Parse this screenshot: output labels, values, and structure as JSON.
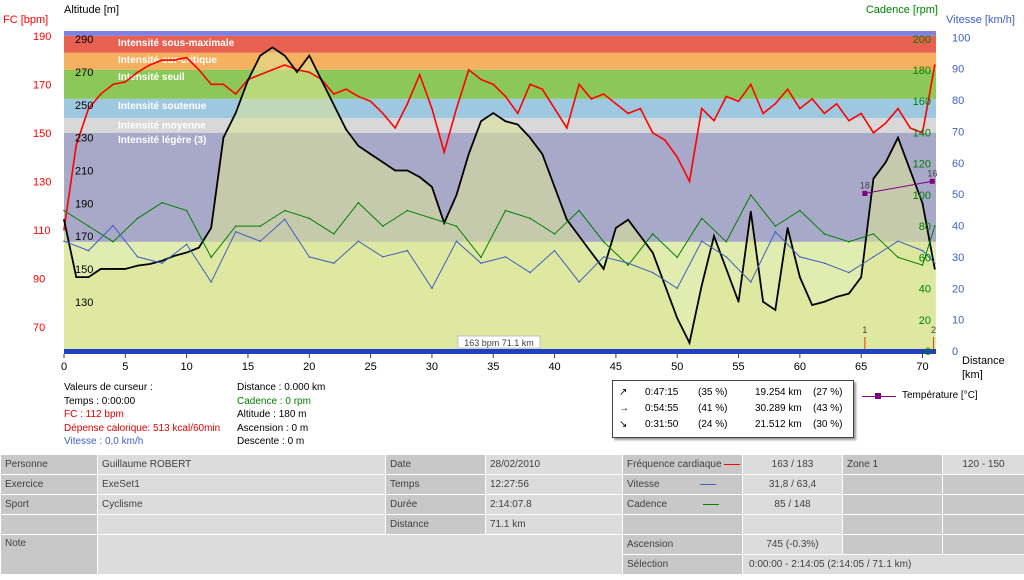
{
  "chart_data": {
    "type": "line",
    "axes": {
      "fc": {
        "label": "FC [bpm]",
        "range": [
          60,
          192
        ],
        "ticks": [
          70,
          90,
          110,
          130,
          150,
          170,
          190
        ]
      },
      "altitude": {
        "label": "Altitude  [m]",
        "range": [
          100,
          295
        ],
        "ticks": [
          130,
          150,
          170,
          190,
          210,
          230,
          250,
          270,
          290
        ]
      },
      "cadence": {
        "label": "Cadence [rpm]",
        "range": [
          0,
          205
        ],
        "ticks": [
          0,
          20,
          40,
          60,
          80,
          100,
          120,
          140,
          160,
          180,
          200
        ]
      },
      "vitesse": {
        "label": "Vitesse [km/h]",
        "range": [
          0,
          102
        ],
        "ticks": [
          0,
          10,
          20,
          30,
          40,
          50,
          60,
          70,
          80,
          90,
          100
        ]
      },
      "x": {
        "label": "Distance [km]",
        "range": [
          0,
          71.1
        ],
        "ticks": [
          0,
          5,
          10,
          15,
          20,
          25,
          30,
          35,
          40,
          45,
          50,
          55,
          60,
          65,
          70
        ]
      }
    },
    "zones": [
      {
        "name": "Intensité sous-maximale",
        "from": 183,
        "to": 190,
        "color": "#e86050"
      },
      {
        "name": "Intensité sur-critique",
        "from": 176,
        "to": 183,
        "color": "#f5b060"
      },
      {
        "name": "Intensité seuil",
        "from": 164,
        "to": 176,
        "color": "#8cc858"
      },
      {
        "name": "Intensité soutenue",
        "from": 156,
        "to": 164,
        "color": "#9ec8e0"
      },
      {
        "name": "Intensité moyenne",
        "from": 150,
        "to": 156,
        "color": "#d8d8d8"
      },
      {
        "name": "Intensité légère (3)",
        "from": 105,
        "to": 150,
        "color": "#a8a8c8"
      },
      {
        "name": "",
        "from": 60,
        "to": 105,
        "color": "#e0ecb0"
      }
    ],
    "series": [
      {
        "name": "FC",
        "axis": "fc",
        "color": "#ff0000",
        "x": [
          0,
          1,
          2,
          3,
          4,
          5,
          6,
          7,
          8,
          9,
          10,
          11,
          12,
          13,
          14,
          15,
          16,
          17,
          18,
          19,
          20,
          21,
          22,
          23,
          24,
          25,
          26,
          27,
          28,
          29,
          30,
          31,
          32,
          33,
          34,
          35,
          36,
          37,
          38,
          39,
          40,
          41,
          42,
          43,
          44,
          45,
          46,
          47,
          48,
          49,
          50,
          51,
          52,
          53,
          54,
          55,
          56,
          57,
          58,
          59,
          60,
          61,
          62,
          63,
          64,
          65,
          66,
          67,
          68,
          69,
          70,
          71
        ],
        "y": [
          110,
          145,
          160,
          166,
          170,
          171,
          175,
          178,
          180,
          180,
          181,
          176,
          170,
          170,
          166,
          172,
          174,
          176,
          178,
          176,
          175,
          172,
          166,
          168,
          165,
          163,
          158,
          152,
          162,
          174,
          160,
          142,
          160,
          176,
          172,
          170,
          165,
          158,
          170,
          168,
          160,
          152,
          170,
          164,
          166,
          162,
          158,
          160,
          150,
          147,
          140,
          130,
          160,
          155,
          165,
          163,
          170,
          158,
          162,
          168,
          160,
          164,
          158,
          162,
          155,
          158,
          150,
          154,
          160,
          152,
          150,
          178
        ]
      },
      {
        "name": "Altitude",
        "axis": "altitude",
        "color": "#000000",
        "x": [
          0,
          1,
          2,
          3,
          4,
          5,
          6,
          7,
          8,
          9,
          10,
          11,
          12,
          13,
          14,
          15,
          16,
          17,
          18,
          19,
          20,
          21,
          22,
          23,
          24,
          25,
          26,
          27,
          28,
          29,
          30,
          31,
          32,
          33,
          34,
          35,
          36,
          37,
          38,
          39,
          40,
          41,
          42,
          43,
          44,
          45,
          46,
          47,
          48,
          49,
          50,
          51,
          52,
          53,
          54,
          55,
          56,
          57,
          58,
          59,
          60,
          61,
          62,
          63,
          64,
          65,
          66,
          67,
          68,
          69,
          70,
          71
        ],
        "y": [
          180,
          145,
          145,
          150,
          150,
          150,
          152,
          153,
          155,
          158,
          160,
          163,
          175,
          230,
          245,
          265,
          280,
          285,
          280,
          270,
          280,
          265,
          250,
          235,
          225,
          220,
          215,
          210,
          210,
          206,
          200,
          178,
          195,
          220,
          240,
          245,
          240,
          238,
          230,
          220,
          200,
          180,
          170,
          160,
          150,
          175,
          180,
          170,
          160,
          140,
          120,
          105,
          140,
          170,
          150,
          130,
          185,
          130,
          125,
          175,
          145,
          128,
          130,
          133,
          135,
          145,
          205,
          215,
          230,
          210,
          190,
          150
        ]
      },
      {
        "name": "Cadence",
        "axis": "cadence",
        "color": "#008000",
        "x": [
          0,
          2,
          4,
          6,
          8,
          10,
          12,
          14,
          16,
          18,
          20,
          22,
          24,
          26,
          28,
          30,
          32,
          34,
          36,
          38,
          40,
          42,
          44,
          46,
          48,
          50,
          52,
          54,
          56,
          58,
          60,
          62,
          64,
          66,
          68,
          70,
          71
        ],
        "y": [
          90,
          80,
          70,
          85,
          95,
          90,
          60,
          80,
          80,
          90,
          85,
          75,
          95,
          80,
          90,
          85,
          80,
          60,
          90,
          85,
          75,
          90,
          70,
          55,
          75,
          60,
          85,
          70,
          100,
          80,
          90,
          75,
          70,
          75,
          60,
          55,
          80
        ]
      },
      {
        "name": "Vitesse",
        "axis": "vitesse",
        "color": "#4060c0",
        "x": [
          0,
          2,
          4,
          6,
          8,
          10,
          12,
          14,
          16,
          18,
          20,
          22,
          24,
          26,
          28,
          30,
          32,
          34,
          36,
          38,
          40,
          42,
          44,
          46,
          48,
          50,
          52,
          54,
          56,
          58,
          60,
          62,
          64,
          66,
          68,
          70,
          71
        ],
        "y": [
          35,
          32,
          40,
          30,
          28,
          34,
          22,
          38,
          35,
          42,
          30,
          28,
          35,
          30,
          32,
          20,
          35,
          28,
          30,
          25,
          32,
          22,
          30,
          28,
          25,
          20,
          35,
          30,
          22,
          38,
          30,
          28,
          25,
          30,
          35,
          32,
          28
        ]
      }
    ],
    "temperature": {
      "label": "Température [°C]",
      "color": "#800080",
      "points": [
        [
          65.3,
          18
        ],
        [
          70.8,
          16
        ]
      ]
    },
    "heart_rate_marker": "163 bpm 71.1 km",
    "markers": [
      "1",
      "2"
    ]
  },
  "cursor": {
    "title": "Valeurs de curseur :",
    "temps": "Temps : 0:00:00",
    "fc": "FC : 112 bpm",
    "depense": "Dépense calorique: 513 kcal/60min",
    "vitesse": "Vitesse : 0,0 km/h",
    "distance": "Distance : 0.000 km",
    "cadence": "Cadence : 0 rpm",
    "altitude": "Altitude : 180 m",
    "ascension": "Ascension : 0 m",
    "descente": "Descente : 0 m"
  },
  "stats": [
    {
      "icon": "↗",
      "time": "0:47:15",
      "pct_time": "(35 %)",
      "dist": "19.254 km",
      "pct_dist": "(27 %)"
    },
    {
      "icon": "→",
      "time": "0:54:55",
      "pct_time": "(41 %)",
      "dist": "30.289 km",
      "pct_dist": "(43 %)"
    },
    {
      "icon": "↘",
      "time": "0:31:50",
      "pct_time": "(24 %)",
      "dist": "21.512 km",
      "pct_dist": "(30 %)"
    }
  ],
  "info": {
    "personne_label": "Personne",
    "personne": "Guillaume ROBERT",
    "date_label": "Date",
    "date": "28/02/2010",
    "fc_label": "Fréquence cardiaque",
    "fc": "163 / 183",
    "zone_label": "Zone 1",
    "zone": "120 - 150",
    "exercice_label": "Exercice",
    "exercice": "ExeSet1",
    "temps_label": "Temps",
    "temps": "12:27:56",
    "vitesse_label": "Vitesse",
    "vitesse": "31,8 / 63,4",
    "sport_label": "Sport",
    "sport": "Cyclisme",
    "duree_label": "Durée",
    "duree": "2:14:07.8",
    "cadence_label": "Cadence",
    "cadence": "85 / 148",
    "distance_label": "Distance",
    "distance": "71.1 km",
    "note_label": "Note",
    "ascension_label": "Ascension",
    "ascension": "745 (-0.3%)",
    "selection_label": "Sélection",
    "selection": "0:00:00 - 2:14:05 (2:14:05 / 71.1 km)"
  },
  "colors": {
    "fc": "#ff0000",
    "vitesse": "#4060c0",
    "cadence": "#008000",
    "altitude": "#000000"
  }
}
